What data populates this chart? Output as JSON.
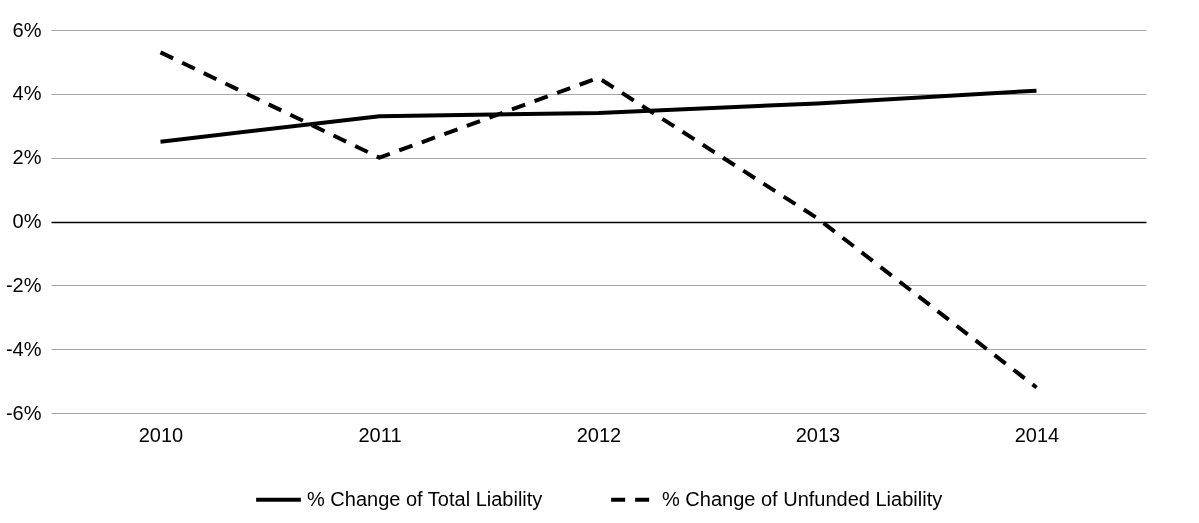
{
  "chart_data": {
    "type": "line",
    "categories": [
      "2010",
      "2011",
      "2012",
      "2013",
      "2014"
    ],
    "series": [
      {
        "name": "% Change of Total Liability",
        "color": "#000000",
        "line_style": "solid",
        "values": [
          2.5,
          3.3,
          3.4,
          3.7,
          4.1
        ]
      },
      {
        "name": "% Change of Unfunded Liability",
        "color": "#000000",
        "line_style": "dashed",
        "values": [
          5.3,
          2.0,
          4.5,
          0.1,
          -5.2
        ]
      }
    ],
    "ylim": [
      -6,
      6
    ],
    "yticks": [
      {
        "value": -6,
        "label": "-6%"
      },
      {
        "value": -4,
        "label": "-4%"
      },
      {
        "value": -2,
        "label": "-2%"
      },
      {
        "value": 0,
        "label": "0%"
      },
      {
        "value": 2,
        "label": "2%"
      },
      {
        "value": 4,
        "label": "4%"
      },
      {
        "value": 6,
        "label": "6%"
      }
    ],
    "grid": "y",
    "legend": "bottom"
  }
}
